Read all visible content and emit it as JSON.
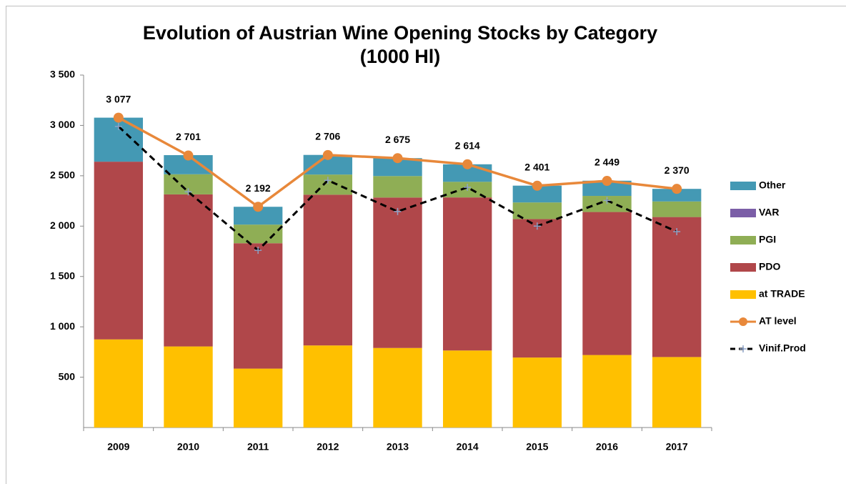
{
  "chart_data": {
    "type": "bar",
    "stacked": true,
    "title": [
      "Evolution of Austrian Wine Opening Stocks by Category",
      "(1000 Hl)"
    ],
    "categories": [
      "2009",
      "2010",
      "2011",
      "2012",
      "2013",
      "2014",
      "2015",
      "2016",
      "2017"
    ],
    "series": [
      {
        "name": "at TRADE",
        "type": "bar",
        "color": "#ffc000",
        "values": [
          875,
          805,
          585,
          815,
          790,
          765,
          695,
          720,
          700
        ]
      },
      {
        "name": "PDO",
        "type": "bar",
        "color": "#b0474a",
        "values": [
          1765,
          1510,
          1245,
          1497,
          1494,
          1520,
          1375,
          1420,
          1390
        ]
      },
      {
        "name": "PGI",
        "type": "bar",
        "color": "#8fae55",
        "values": [
          0,
          200,
          185,
          200,
          213,
          155,
          165,
          160,
          155
        ]
      },
      {
        "name": "VAR",
        "type": "bar",
        "color": "#7b5ea7",
        "values": [
          0,
          0,
          0,
          0,
          0,
          0,
          0,
          0,
          0
        ]
      },
      {
        "name": "Other",
        "type": "bar",
        "color": "#4499b4",
        "values": [
          437,
          190,
          177,
          195,
          178,
          174,
          167,
          151,
          125
        ]
      },
      {
        "name": "AT level",
        "type": "line",
        "color": "#e8883a",
        "marker": "circle",
        "dashed": false,
        "values": [
          3077,
          2701,
          2192,
          2706,
          2675,
          2614,
          2401,
          2449,
          2370
        ],
        "value_labels": [
          "3 077",
          "2 701",
          "2 192",
          "2 706",
          "2 675",
          "2 614",
          "2 401",
          "2 449",
          "2 370"
        ]
      },
      {
        "name": "Vinif.Prod",
        "type": "line",
        "color": "#000000",
        "marker": "plus",
        "dashed": true,
        "values": [
          2990,
          2340,
          1760,
          2455,
          2145,
          2385,
          2000,
          2255,
          1945
        ]
      }
    ],
    "ylim": [
      0,
      3500
    ],
    "yticks": [
      {
        "value": 500,
        "label": "500"
      },
      {
        "value": 1000,
        "label": "1 000"
      },
      {
        "value": 1500,
        "label": "1 500"
      },
      {
        "value": 2000,
        "label": "2 000"
      },
      {
        "value": 2500,
        "label": "2 500"
      },
      {
        "value": 3000,
        "label": "3 000"
      },
      {
        "value": 3500,
        "label": "3 500"
      }
    ],
    "grid": false,
    "legend": "right"
  }
}
